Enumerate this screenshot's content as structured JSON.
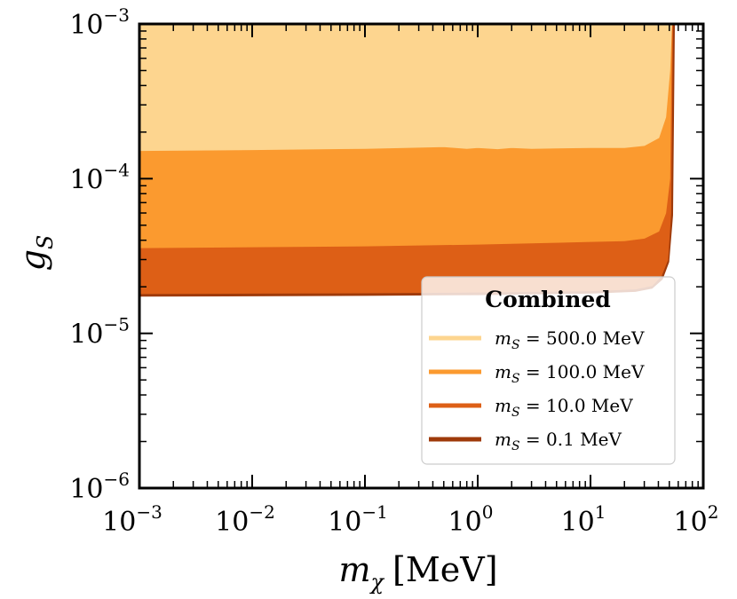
{
  "chart_data": {
    "type": "area",
    "xscale": "log",
    "yscale": "log",
    "xlim": [
      0.001,
      100
    ],
    "ylim": [
      1e-06,
      0.001
    ],
    "xticks": [
      {
        "value": 0.001,
        "base": "10",
        "exp": "−3"
      },
      {
        "value": 0.01,
        "base": "10",
        "exp": "−2"
      },
      {
        "value": 0.1,
        "base": "10",
        "exp": "−1"
      },
      {
        "value": 1,
        "base": "10",
        "exp": "0"
      },
      {
        "value": 10,
        "base": "10",
        "exp": "1"
      },
      {
        "value": 100,
        "base": "10",
        "exp": "2"
      }
    ],
    "yticks": [
      {
        "value": 1e-06,
        "base": "10",
        "exp": "−6"
      },
      {
        "value": 1e-05,
        "base": "10",
        "exp": "−5"
      },
      {
        "value": 0.0001,
        "base": "10",
        "exp": "−4"
      },
      {
        "value": 0.001,
        "base": "10",
        "exp": "−3"
      }
    ],
    "xlabel": {
      "symbol": "m",
      "sub": "χ",
      "unit": "[MeV]"
    },
    "ylabel": {
      "symbol": "g",
      "sub": "S"
    },
    "legend": {
      "title": "Combined",
      "position": "lower-right"
    },
    "series": [
      {
        "name": "m_S = 500.0 MeV",
        "label_symbol": "m",
        "label_sub": "S",
        "label_value": "= 500.0 MeV",
        "color": "#fdd58f",
        "boundary": {
          "x": [
            0.001,
            0.01,
            0.1,
            0.5,
            0.8,
            1.0,
            1.5,
            2.0,
            3.0,
            5.0,
            10,
            20,
            30,
            40,
            46,
            50,
            52
          ],
          "y": [
            0.000153,
            0.000155,
            0.000158,
            0.000162,
            0.000158,
            0.00016,
            0.000157,
            0.00016,
            0.000158,
            0.000159,
            0.00016,
            0.00016,
            0.000165,
            0.000185,
            0.00025,
            0.0005,
            0.001
          ]
        }
      },
      {
        "name": "m_S = 100.0 MeV",
        "label_symbol": "m",
        "label_sub": "S",
        "label_value": "= 100.0 MeV",
        "color": "#fb9a2f",
        "boundary": {
          "x": [
            0.001,
            0.01,
            0.1,
            1.0,
            10,
            20,
            30,
            40,
            46,
            50,
            52
          ],
          "y": [
            3.6e-05,
            3.65e-05,
            3.7e-05,
            3.8e-05,
            3.95e-05,
            4e-05,
            4.15e-05,
            4.6e-05,
            6e-05,
            0.0001,
            0.001
          ]
        }
      },
      {
        "name": "m_S = 10.0 MeV",
        "label_symbol": "m",
        "label_sub": "S",
        "label_value": "= 10.0 MeV",
        "color": "#dd5f16",
        "boundary": {
          "x": [
            0.001,
            0.01,
            0.1,
            1.0,
            10,
            25,
            35,
            42,
            48,
            51,
            53
          ],
          "y": [
            1.82e-05,
            1.83e-05,
            1.84e-05,
            1.86e-05,
            1.9e-05,
            1.95e-05,
            2.05e-05,
            2.35e-05,
            3e-05,
            6e-05,
            0.001
          ]
        }
      },
      {
        "name": "m_S = 0.1 MeV",
        "label_symbol": "m",
        "label_sub": "S",
        "label_value": "= 0.1 MeV",
        "color": "#9e3a0a",
        "boundary": {
          "x": [
            0.001,
            0.01,
            0.1,
            1.0,
            10,
            25,
            35,
            43,
            49,
            53,
            55
          ],
          "y": [
            1.75e-05,
            1.76e-05,
            1.77e-05,
            1.79e-05,
            1.83e-05,
            1.88e-05,
            1.97e-05,
            2.25e-05,
            2.9e-05,
            5.8e-05,
            0.001
          ]
        }
      }
    ]
  }
}
